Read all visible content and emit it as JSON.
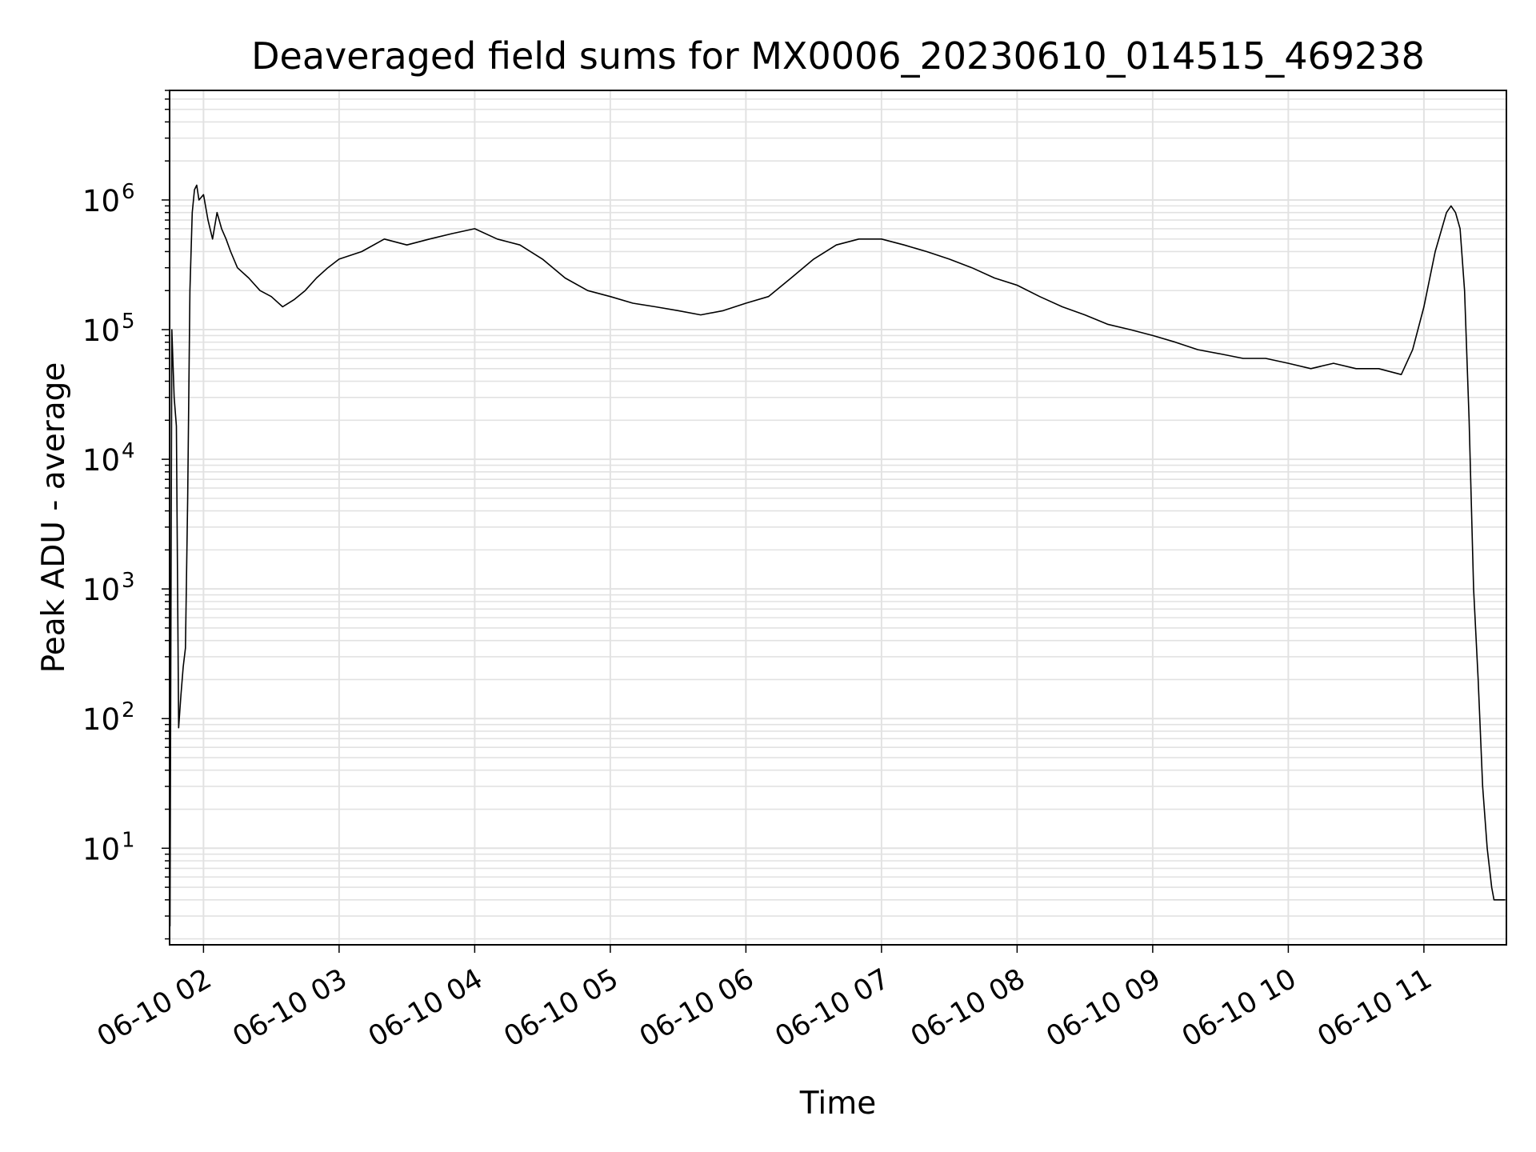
{
  "chart_data": {
    "type": "line",
    "title": "Deaveraged field sums for MX0006_20230610_014515_469238",
    "xlabel": "Time",
    "ylabel": "Peak ADU - average",
    "xscale": "time",
    "yscale": "log",
    "xlim": [
      "2023-06-10T01:45:00",
      "2023-06-10T11:36:30"
    ],
    "ylim": [
      1.8,
      7000000
    ],
    "xticks": [
      {
        "value": "2023-06-10T02:00:00",
        "label": "06-10 02"
      },
      {
        "value": "2023-06-10T03:00:00",
        "label": "06-10 03"
      },
      {
        "value": "2023-06-10T04:00:00",
        "label": "06-10 04"
      },
      {
        "value": "2023-06-10T05:00:00",
        "label": "06-10 05"
      },
      {
        "value": "2023-06-10T06:00:00",
        "label": "06-10 06"
      },
      {
        "value": "2023-06-10T07:00:00",
        "label": "06-10 07"
      },
      {
        "value": "2023-06-10T08:00:00",
        "label": "06-10 08"
      },
      {
        "value": "2023-06-10T09:00:00",
        "label": "06-10 09"
      },
      {
        "value": "2023-06-10T10:00:00",
        "label": "06-10 10"
      },
      {
        "value": "2023-06-10T11:00:00",
        "label": "06-10 11"
      }
    ],
    "yticks": [
      {
        "value": 10,
        "base": "10",
        "exp": "1"
      },
      {
        "value": 100,
        "base": "10",
        "exp": "2"
      },
      {
        "value": 1000,
        "base": "10",
        "exp": "3"
      },
      {
        "value": 10000,
        "base": "10",
        "exp": "4"
      },
      {
        "value": 100000,
        "base": "10",
        "exp": "5"
      },
      {
        "value": 1000000,
        "base": "10",
        "exp": "6"
      }
    ],
    "grid": true,
    "line_color": "#000000",
    "series": [
      {
        "x": [
          "2023-06-10T01:45:10",
          "2023-06-10T01:46:00",
          "2023-06-10T01:47:00",
          "2023-06-10T01:48:00",
          "2023-06-10T01:49:00",
          "2023-06-10T01:50:00",
          "2023-06-10T01:51:00",
          "2023-06-10T01:52:00",
          "2023-06-10T01:53:00",
          "2023-06-10T01:54:00",
          "2023-06-10T01:55:00",
          "2023-06-10T01:56:00",
          "2023-06-10T01:57:00",
          "2023-06-10T01:58:00",
          "2023-06-10T02:00:00",
          "2023-06-10T02:02:00",
          "2023-06-10T02:04:00",
          "2023-06-10T02:06:00",
          "2023-06-10T02:08:00",
          "2023-06-10T02:10:00",
          "2023-06-10T02:12:00",
          "2023-06-10T02:15:00",
          "2023-06-10T02:20:00",
          "2023-06-10T02:25:00",
          "2023-06-10T02:30:00",
          "2023-06-10T02:35:00",
          "2023-06-10T02:40:00",
          "2023-06-10T02:45:00",
          "2023-06-10T02:50:00",
          "2023-06-10T02:55:00",
          "2023-06-10T03:00:00",
          "2023-06-10T03:10:00",
          "2023-06-10T03:20:00",
          "2023-06-10T03:30:00",
          "2023-06-10T03:40:00",
          "2023-06-10T03:50:00",
          "2023-06-10T04:00:00",
          "2023-06-10T04:10:00",
          "2023-06-10T04:20:00",
          "2023-06-10T04:30:00",
          "2023-06-10T04:40:00",
          "2023-06-10T04:50:00",
          "2023-06-10T05:00:00",
          "2023-06-10T05:10:00",
          "2023-06-10T05:20:00",
          "2023-06-10T05:30:00",
          "2023-06-10T05:40:00",
          "2023-06-10T05:50:00",
          "2023-06-10T06:00:00",
          "2023-06-10T06:10:00",
          "2023-06-10T06:20:00",
          "2023-06-10T06:30:00",
          "2023-06-10T06:40:00",
          "2023-06-10T06:50:00",
          "2023-06-10T07:00:00",
          "2023-06-10T07:10:00",
          "2023-06-10T07:20:00",
          "2023-06-10T07:30:00",
          "2023-06-10T07:40:00",
          "2023-06-10T07:50:00",
          "2023-06-10T08:00:00",
          "2023-06-10T08:10:00",
          "2023-06-10T08:20:00",
          "2023-06-10T08:30:00",
          "2023-06-10T08:40:00",
          "2023-06-10T08:50:00",
          "2023-06-10T09:00:00",
          "2023-06-10T09:10:00",
          "2023-06-10T09:20:00",
          "2023-06-10T09:30:00",
          "2023-06-10T09:40:00",
          "2023-06-10T09:50:00",
          "2023-06-10T10:00:00",
          "2023-06-10T10:10:00",
          "2023-06-10T10:20:00",
          "2023-06-10T10:30:00",
          "2023-06-10T10:40:00",
          "2023-06-10T10:50:00",
          "2023-06-10T10:55:00",
          "2023-06-10T11:00:00",
          "2023-06-10T11:05:00",
          "2023-06-10T11:10:00",
          "2023-06-10T11:12:00",
          "2023-06-10T11:14:00",
          "2023-06-10T11:16:00",
          "2023-06-10T11:18:00",
          "2023-06-10T11:20:00",
          "2023-06-10T11:22:00",
          "2023-06-10T11:24:00",
          "2023-06-10T11:26:00",
          "2023-06-10T11:28:00",
          "2023-06-10T11:30:00",
          "2023-06-10T11:31:00",
          "2023-06-10T11:32:00",
          "2023-06-10T11:36:00"
        ],
        "y": [
          2.5,
          100000,
          30000,
          18000,
          85,
          150,
          250,
          350,
          5000,
          200000,
          800000,
          1200000,
          1300000,
          1000000,
          1100000,
          700000,
          500000,
          800000,
          600000,
          500000,
          400000,
          300000,
          250000,
          200000,
          180000,
          150000,
          170000,
          200000,
          250000,
          300000,
          350000,
          400000,
          500000,
          450000,
          500000,
          550000,
          600000,
          500000,
          450000,
          350000,
          250000,
          200000,
          180000,
          160000,
          150000,
          140000,
          130000,
          140000,
          160000,
          180000,
          250000,
          350000,
          450000,
          500000,
          500000,
          450000,
          400000,
          350000,
          300000,
          250000,
          220000,
          180000,
          150000,
          130000,
          110000,
          100000,
          90000,
          80000,
          70000,
          65000,
          60000,
          60000,
          55000,
          50000,
          55000,
          50000,
          50000,
          45000,
          70000,
          150000,
          400000,
          800000,
          900000,
          800000,
          600000,
          200000,
          20000,
          1000,
          200,
          30,
          10,
          5,
          4,
          4,
          4
        ]
      }
    ]
  }
}
